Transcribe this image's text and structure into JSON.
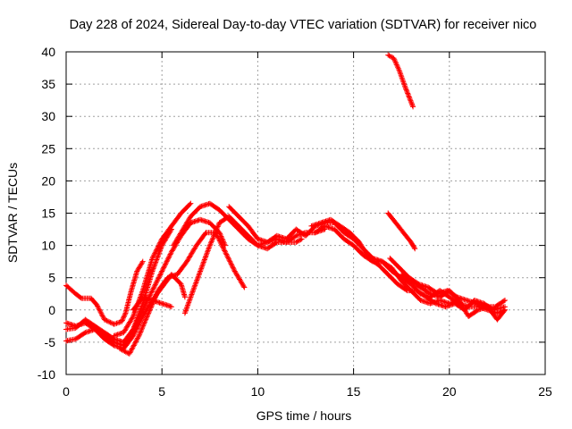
{
  "chart_data": {
    "type": "scatter",
    "title": "Day 228 of 2024, Sidereal Day-to-day VTEC variation (SDTVAR) for receiver nico",
    "xlabel": "GPS time / hours",
    "ylabel": "SDTVAR / TECUs",
    "xlim": [
      0,
      25
    ],
    "ylim": [
      -10,
      40
    ],
    "xticks": [
      0,
      5,
      10,
      15,
      20,
      25
    ],
    "yticks": [
      -10,
      -5,
      0,
      5,
      10,
      15,
      20,
      25,
      30,
      35,
      40
    ],
    "grid": true,
    "series_color": "#ff0000",
    "marker": "+",
    "series": [
      {
        "name": "arc1",
        "points": [
          [
            0,
            3.8
          ],
          [
            0.5,
            2.5
          ],
          [
            0.8,
            1.8
          ],
          [
            1.3,
            1.8
          ],
          [
            1.6,
            0.8
          ],
          [
            2.0,
            -1.5
          ],
          [
            2.5,
            -2.2
          ],
          [
            2.9,
            -1.8
          ],
          [
            3.1,
            -0.5
          ],
          [
            3.4,
            3
          ],
          [
            3.7,
            6
          ],
          [
            4.0,
            7.5
          ]
        ]
      },
      {
        "name": "arc2",
        "points": [
          [
            0,
            -4.8
          ],
          [
            0.5,
            -4.5
          ],
          [
            1.0,
            -3.5
          ],
          [
            1.5,
            -3
          ],
          [
            2.0,
            -4
          ],
          [
            2.5,
            -5
          ],
          [
            3.0,
            -5.5
          ],
          [
            3.5,
            -3
          ],
          [
            4.0,
            1
          ],
          [
            4.5,
            6
          ],
          [
            5.0,
            10
          ],
          [
            5.5,
            12.5
          ]
        ]
      },
      {
        "name": "arc3",
        "points": [
          [
            0,
            -3
          ],
          [
            0.5,
            -2.8
          ],
          [
            1.0,
            -1.5
          ],
          [
            1.5,
            -2.5
          ],
          [
            2.0,
            -3.5
          ],
          [
            2.5,
            -4.5
          ],
          [
            3.0,
            -5
          ],
          [
            3.5,
            -3
          ],
          [
            4.0,
            0
          ],
          [
            4.5,
            3
          ],
          [
            5.0,
            6
          ],
          [
            5.5,
            9
          ],
          [
            6.0,
            11.5
          ],
          [
            6.5,
            13.5
          ],
          [
            7.0,
            14
          ],
          [
            7.5,
            13.5
          ],
          [
            8.0,
            12
          ],
          [
            8.3,
            10
          ]
        ]
      },
      {
        "name": "arc4",
        "points": [
          [
            0,
            -2
          ],
          [
            0.5,
            -2.5
          ],
          [
            1.0,
            -2
          ],
          [
            1.5,
            -3
          ],
          [
            2.0,
            -4.5
          ],
          [
            2.5,
            -5.5
          ],
          [
            3.0,
            -6
          ],
          [
            3.5,
            -4
          ],
          [
            4.0,
            -1
          ],
          [
            4.5,
            1.5
          ],
          [
            5.0,
            3.5
          ],
          [
            5.5,
            5.5
          ],
          [
            6.0,
            4
          ],
          [
            6.2,
            2
          ]
        ]
      },
      {
        "name": "arc5",
        "points": [
          [
            2.5,
            -4
          ],
          [
            3.0,
            -3.5
          ],
          [
            3.5,
            -1
          ],
          [
            4.0,
            3
          ],
          [
            4.5,
            8
          ],
          [
            5.0,
            11
          ],
          [
            5.5,
            13
          ],
          [
            6.0,
            15
          ],
          [
            6.5,
            16.5
          ]
        ]
      },
      {
        "name": "arc6",
        "points": [
          [
            2.8,
            -6
          ],
          [
            3.3,
            -6.8
          ],
          [
            3.8,
            -4
          ],
          [
            4.3,
            -0.5
          ],
          [
            4.8,
            3
          ],
          [
            5.3,
            5
          ],
          [
            5.8,
            5.5
          ],
          [
            6.3,
            7.5
          ],
          [
            6.8,
            10
          ],
          [
            7.3,
            12
          ],
          [
            7.8,
            12
          ],
          [
            8.3,
            9
          ],
          [
            8.8,
            6
          ],
          [
            9.3,
            3.5
          ]
        ]
      },
      {
        "name": "arc7",
        "points": [
          [
            3.5,
            0
          ],
          [
            4.0,
            2
          ],
          [
            4.5,
            1.5
          ],
          [
            5.0,
            1
          ],
          [
            5.5,
            0.5
          ]
        ]
      },
      {
        "name": "arc8",
        "points": [
          [
            6.2,
            -0.5
          ],
          [
            6.5,
            2
          ],
          [
            7.0,
            6
          ],
          [
            7.5,
            10
          ],
          [
            8.0,
            13.5
          ],
          [
            8.5,
            14.5
          ],
          [
            9.0,
            13
          ],
          [
            9.5,
            11.5
          ],
          [
            10.0,
            10
          ],
          [
            10.5,
            10.5
          ],
          [
            11.0,
            11
          ],
          [
            11.5,
            10.5
          ],
          [
            12.0,
            10.5
          ],
          [
            12.3,
            11
          ]
        ]
      },
      {
        "name": "arc9",
        "points": [
          [
            5.6,
            10
          ],
          [
            6.0,
            12
          ],
          [
            6.5,
            14.5
          ],
          [
            7.0,
            16
          ],
          [
            7.5,
            16.5
          ],
          [
            8.0,
            15.5
          ],
          [
            8.5,
            14
          ],
          [
            9.0,
            12.5
          ],
          [
            9.5,
            11
          ],
          [
            10.0,
            10
          ],
          [
            10.5,
            9.5
          ],
          [
            11.0,
            10.5
          ],
          [
            11.5,
            10.5
          ],
          [
            12.0,
            11.5
          ],
          [
            12.5,
            12
          ],
          [
            13.0,
            12
          ],
          [
            13.5,
            12.5
          ]
        ]
      },
      {
        "name": "arc10",
        "points": [
          [
            8.5,
            16
          ],
          [
            9.0,
            14.5
          ],
          [
            9.5,
            13
          ],
          [
            10.0,
            11
          ],
          [
            10.5,
            10.5
          ],
          [
            11.0,
            11.5
          ],
          [
            11.5,
            11
          ],
          [
            12.0,
            12.5
          ],
          [
            12.5,
            11.5
          ],
          [
            13.0,
            13
          ],
          [
            13.5,
            13.5
          ],
          [
            14.0,
            13.5
          ],
          [
            14.5,
            12
          ],
          [
            15.0,
            11
          ],
          [
            15.5,
            9.5
          ],
          [
            16.0,
            8
          ],
          [
            16.5,
            7.5
          ],
          [
            17.0,
            6.5
          ],
          [
            17.5,
            4.5
          ],
          [
            18.0,
            3
          ],
          [
            18.5,
            1.5
          ],
          [
            19.0,
            1
          ],
          [
            19.5,
            1.5
          ],
          [
            20.0,
            1
          ],
          [
            20.5,
            1.5
          ]
        ]
      },
      {
        "name": "arc11",
        "points": [
          [
            13.0,
            12
          ],
          [
            13.5,
            13
          ],
          [
            14.0,
            12.5
          ],
          [
            14.5,
            11
          ],
          [
            15.0,
            10
          ],
          [
            15.5,
            8.5
          ],
          [
            16.0,
            7.5
          ],
          [
            16.5,
            7.5
          ],
          [
            17.0,
            6
          ],
          [
            17.5,
            5
          ],
          [
            18.0,
            4
          ],
          [
            18.5,
            2.5
          ],
          [
            19.0,
            2
          ],
          [
            19.5,
            3
          ],
          [
            20.0,
            2
          ],
          [
            20.5,
            1
          ],
          [
            21.0,
            0.5
          ],
          [
            21.5,
            0.5
          ],
          [
            22.0,
            0
          ],
          [
            22.5,
            -0.5
          ],
          [
            22.9,
            0
          ]
        ]
      },
      {
        "name": "arc12",
        "points": [
          [
            12.8,
            13
          ],
          [
            13.3,
            13.5
          ],
          [
            13.8,
            14
          ],
          [
            14.3,
            13
          ],
          [
            14.8,
            12
          ],
          [
            15.3,
            10.5
          ],
          [
            15.8,
            8
          ],
          [
            16.3,
            7
          ],
          [
            16.8,
            5.5
          ],
          [
            17.3,
            4
          ],
          [
            17.8,
            3
          ],
          [
            18.3,
            3
          ],
          [
            18.8,
            2
          ],
          [
            19.3,
            1
          ],
          [
            19.8,
            0.5
          ],
          [
            20.3,
            1
          ],
          [
            20.8,
            0
          ],
          [
            21.3,
            1.5
          ],
          [
            21.8,
            1
          ],
          [
            22.3,
            0
          ],
          [
            22.9,
            0.5
          ]
        ]
      },
      {
        "name": "arc13",
        "points": [
          [
            16.9,
            8
          ],
          [
            17.4,
            6.5
          ],
          [
            17.9,
            5
          ],
          [
            18.4,
            4
          ],
          [
            18.9,
            3.5
          ],
          [
            19.4,
            2.5
          ],
          [
            19.9,
            3
          ],
          [
            20.4,
            2
          ],
          [
            20.9,
            1.5
          ],
          [
            21.4,
            1
          ],
          [
            21.9,
            0.5
          ],
          [
            22.4,
            0.5
          ],
          [
            22.9,
            1.5
          ]
        ]
      },
      {
        "name": "arc14",
        "points": [
          [
            17.5,
            5.5
          ],
          [
            18.0,
            4.5
          ],
          [
            18.5,
            3.5
          ],
          [
            19.0,
            2.5
          ],
          [
            19.5,
            2
          ],
          [
            20.0,
            3
          ],
          [
            20.5,
            1.5
          ],
          [
            21.0,
            -1
          ],
          [
            21.5,
            0
          ],
          [
            22.0,
            0.5
          ],
          [
            22.5,
            -1.5
          ],
          [
            22.9,
            0
          ]
        ]
      },
      {
        "name": "arc15",
        "points": [
          [
            16.8,
            15
          ],
          [
            17.2,
            13.5
          ],
          [
            17.6,
            12
          ],
          [
            18.0,
            10.5
          ],
          [
            18.2,
            9.5
          ]
        ]
      },
      {
        "name": "arc16",
        "points": [
          [
            16.8,
            39.5
          ],
          [
            17.1,
            39
          ],
          [
            17.4,
            37
          ],
          [
            17.7,
            34.5
          ],
          [
            17.9,
            33
          ],
          [
            18.1,
            31.5
          ]
        ]
      }
    ]
  }
}
